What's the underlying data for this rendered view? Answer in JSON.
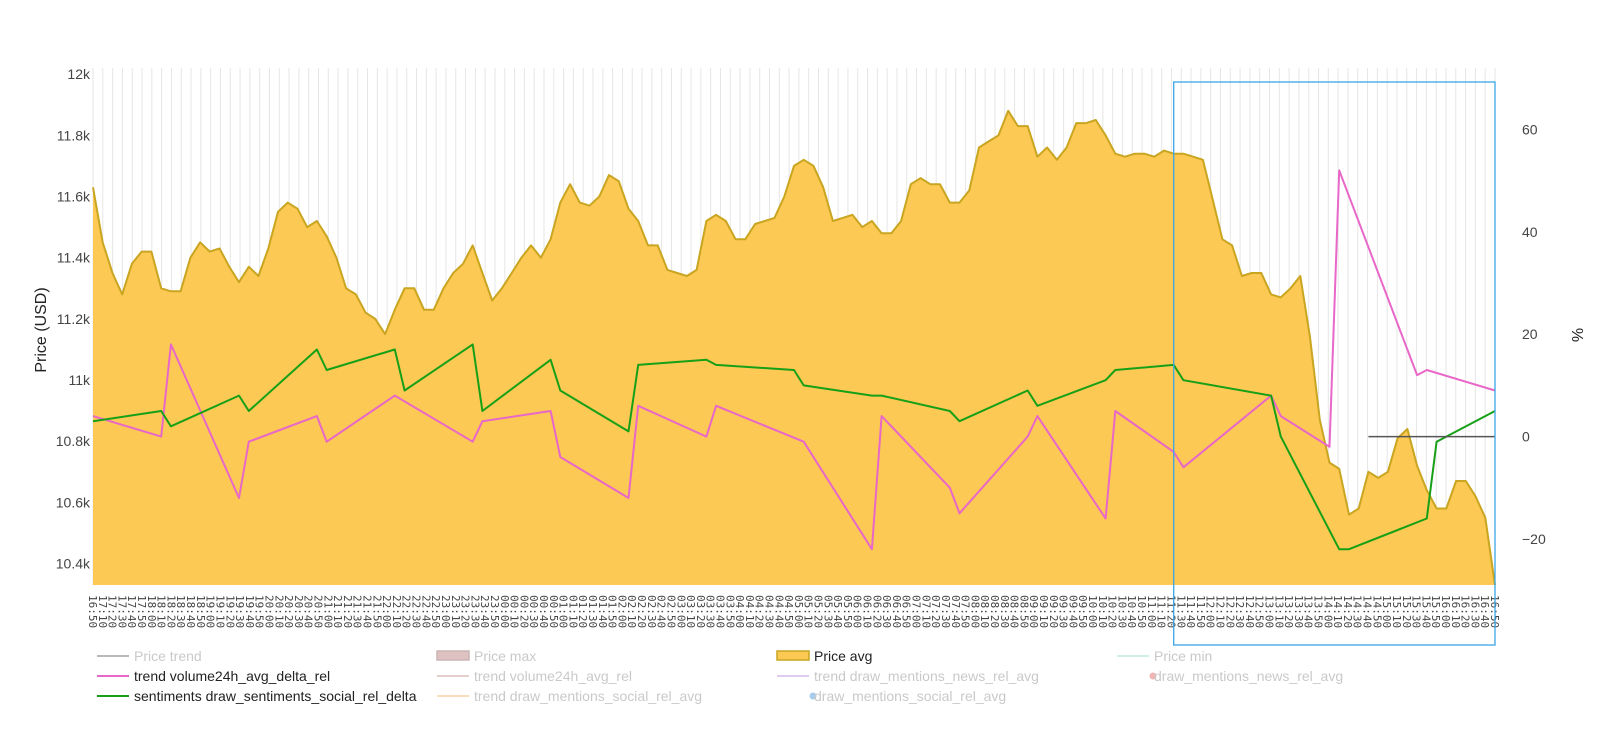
{
  "chart_data": {
    "type": "area",
    "title": "",
    "y_left": {
      "label": "Price (USD)",
      "range": [
        10330,
        12020
      ],
      "ticks": [
        10400,
        10600,
        10800,
        11000,
        11200,
        11400,
        11600,
        11800,
        12000
      ],
      "tick_labels": [
        "10.4k",
        "10.6k",
        "10.8k",
        "11k",
        "11.2k",
        "11.4k",
        "11.6k",
        "11.8k",
        "12k"
      ]
    },
    "y_right": {
      "label": "%",
      "range": [
        -29,
        72
      ],
      "ticks": [
        -20,
        0,
        20,
        40,
        60
      ],
      "tick_labels": [
        "−20",
        "0",
        "20",
        "40",
        "60"
      ]
    },
    "x_range": [
      0,
      144
    ],
    "x_tick_labels": [
      "16:50",
      "17:10",
      "17:20",
      "17:30",
      "17:40",
      "17:50",
      "18:00",
      "18:10",
      "18:20",
      "18:30",
      "18:40",
      "18:50",
      "19:00",
      "19:10",
      "19:20",
      "19:30",
      "19:40",
      "19:50",
      "20:00",
      "20:10",
      "20:20",
      "20:30",
      "20:40",
      "20:50",
      "21:00",
      "21:10",
      "21:20",
      "21:30",
      "21:40",
      "21:50",
      "22:00",
      "22:10",
      "22:20",
      "22:30",
      "22:40",
      "22:50",
      "23:00",
      "23:10",
      "23:20",
      "23:30",
      "23:40",
      "23:50",
      "00:00",
      "00:10",
      "00:20",
      "00:30",
      "00:40",
      "00:50",
      "01:00",
      "01:10",
      "01:20",
      "01:30",
      "01:40",
      "01:50",
      "02:00",
      "02:10",
      "02:20",
      "02:30",
      "02:40",
      "02:50",
      "03:00",
      "03:10",
      "03:20",
      "03:30",
      "03:40",
      "03:50",
      "04:00",
      "04:10",
      "04:20",
      "04:30",
      "04:40",
      "04:50",
      "05:00",
      "05:10",
      "05:20",
      "05:30",
      "05:40",
      "05:50",
      "06:00",
      "06:10",
      "06:20",
      "06:30",
      "06:40",
      "06:50",
      "07:00",
      "07:10",
      "07:20",
      "07:30",
      "07:40",
      "07:50",
      "08:00",
      "08:10",
      "08:20",
      "08:30",
      "08:40",
      "08:50",
      "09:00",
      "09:10",
      "09:20",
      "09:30",
      "09:40",
      "09:50",
      "10:00",
      "10:10",
      "10:20",
      "10:30",
      "10:40",
      "10:50",
      "11:00",
      "11:10",
      "11:20",
      "11:30",
      "11:40",
      "11:50",
      "12:00",
      "12:10",
      "12:20",
      "12:30",
      "12:40",
      "12:50",
      "13:00",
      "13:10",
      "13:20",
      "13:30",
      "13:40",
      "13:50",
      "14:00",
      "14:10",
      "14:20",
      "14:30",
      "14:40",
      "14:50",
      "15:00",
      "15:10",
      "15:20",
      "15:30",
      "15:40",
      "15:50",
      "16:00",
      "16:10",
      "16:20",
      "16:30",
      "16:40",
      "16:50"
    ],
    "series": [
      {
        "name": "Price avg",
        "axis": "left",
        "kind": "area",
        "color": "#fcc954",
        "line_color": "#c9a520",
        "x": [
          0,
          1,
          2,
          3,
          4,
          5,
          6,
          7,
          8,
          9,
          10,
          11,
          12,
          13,
          14,
          15,
          16,
          17,
          18,
          19,
          20,
          21,
          22,
          23,
          24,
          25,
          26,
          27,
          28,
          29,
          30,
          31,
          32,
          33,
          34,
          35,
          36,
          37,
          38,
          39,
          40,
          41,
          42,
          43,
          44,
          45,
          46,
          47,
          48,
          49,
          50,
          51,
          52,
          53,
          54,
          55,
          56,
          57,
          58,
          59,
          60,
          61,
          62,
          63,
          64,
          65,
          66,
          67,
          68,
          69,
          70,
          71,
          72,
          73,
          74,
          75,
          76,
          77,
          78,
          79,
          80,
          81,
          82,
          83,
          84,
          85,
          86,
          87,
          88,
          89,
          90,
          91,
          92,
          93,
          94,
          95,
          96,
          97,
          98,
          99,
          100,
          101,
          102,
          103,
          104,
          105,
          106,
          107,
          108,
          109,
          110,
          111,
          112,
          113,
          114,
          115,
          116,
          117,
          118,
          119,
          120,
          121,
          122,
          123,
          124,
          125,
          126,
          127,
          128,
          129,
          130,
          131,
          132,
          133,
          134,
          135,
          136,
          137,
          138,
          139,
          140,
          141,
          142,
          143,
          144
        ],
        "values": [
          11630,
          11450,
          11350,
          11280,
          11380,
          11420,
          11420,
          11300,
          11290,
          11290,
          11400,
          11450,
          11420,
          11430,
          11370,
          11320,
          11370,
          11340,
          11430,
          11550,
          11580,
          11560,
          11500,
          11520,
          11470,
          11400,
          11300,
          11280,
          11220,
          11200,
          11150,
          11230,
          11300,
          11300,
          11230,
          11230,
          11300,
          11350,
          11380,
          11440,
          11350,
          11260,
          11300,
          11350,
          11400,
          11440,
          11400,
          11460,
          11580,
          11640,
          11580,
          11570,
          11600,
          11670,
          11650,
          11560,
          11520,
          11440,
          11440,
          11360,
          11350,
          11340,
          11360,
          11520,
          11540,
          11520,
          11460,
          11460,
          11510,
          11520,
          11530,
          11600,
          11700,
          11720,
          11700,
          11630,
          11520,
          11530,
          11540,
          11500,
          11520,
          11480,
          11480,
          11520,
          11640,
          11660,
          11640,
          11640,
          11580,
          11580,
          11620,
          11760,
          11780,
          11800,
          11880,
          11830,
          11830,
          11730,
          11760,
          11720,
          11760,
          11840,
          11840,
          11850,
          11800,
          11740,
          11730,
          11740,
          11740,
          11730,
          11750,
          11740,
          11740,
          11730,
          11720,
          11590,
          11460,
          11440,
          11340,
          11350,
          11350,
          11280,
          11270,
          11300,
          11340,
          11140,
          10870,
          10730,
          10710,
          10560,
          10580,
          10700,
          10680,
          10700,
          10810,
          10840,
          10720,
          10640,
          10580,
          10580,
          10670,
          10670,
          10620,
          10550,
          10330
        ]
      },
      {
        "name": "trend volume24h_avg_delta_rel",
        "axis": "right",
        "kind": "line",
        "color": "#e867c8",
        "x": [
          0,
          7,
          8,
          15,
          16,
          23,
          24,
          31,
          39,
          40,
          47,
          48,
          55,
          56,
          63,
          64,
          73,
          80,
          81,
          88,
          89,
          96,
          97,
          104,
          105,
          111,
          112,
          121,
          122,
          127,
          128,
          136,
          137,
          144
        ],
        "values": [
          4,
          0,
          18,
          -12,
          -1,
          4,
          -1,
          8,
          -1,
          3,
          5,
          -4,
          -12,
          6,
          0,
          6,
          -1,
          -22,
          4,
          -10,
          -15,
          0,
          4,
          -16,
          5,
          -3,
          -6,
          8,
          4,
          -2,
          52,
          12,
          13,
          9
        ]
      },
      {
        "name": "sentiments draw_sentiments_social_rel_delta",
        "axis": "right",
        "kind": "line",
        "color": "#17a017",
        "x": [
          0,
          7,
          8,
          15,
          16,
          23,
          24,
          31,
          32,
          39,
          40,
          47,
          48,
          55,
          56,
          63,
          64,
          72,
          73,
          80,
          81,
          88,
          89,
          96,
          97,
          104,
          105,
          111,
          112,
          121,
          122,
          128,
          129,
          137,
          138,
          144
        ],
        "values": [
          3,
          5,
          2,
          8,
          5,
          17,
          13,
          17,
          9,
          18,
          5,
          15,
          9,
          1,
          14,
          15,
          14,
          13,
          10,
          8,
          8,
          5,
          3,
          9,
          6,
          11,
          13,
          14,
          11,
          8,
          0,
          -22,
          -22,
          -16,
          -1,
          5
        ]
      },
      {
        "name": "Price trend",
        "axis": "right",
        "kind": "line",
        "color": "#555555",
        "x": [
          131,
          144
        ],
        "values": [
          0,
          0
        ]
      }
    ],
    "legend": [
      {
        "label": "Price trend",
        "kind": "line",
        "color": "#666666",
        "visible": false
      },
      {
        "label": "Price max",
        "kind": "swatch",
        "color": "#b87a7a",
        "visible": false
      },
      {
        "label": "Price avg",
        "kind": "swatch",
        "color": "#fcc954",
        "visible": true
      },
      {
        "label": "Price min",
        "kind": "line",
        "color": "#8fdcc8",
        "visible": false
      },
      {
        "label": "trend volume24h_avg_delta_rel",
        "kind": "line",
        "color": "#e867c8",
        "visible": true
      },
      {
        "label": "trend volume24h_avg_rel",
        "kind": "line",
        "color": "#c4968f",
        "visible": false
      },
      {
        "label": "trend draw_mentions_news_rel_avg",
        "kind": "line",
        "color": "#b98fe0",
        "visible": false
      },
      {
        "label": "draw_mentions_news_rel_avg",
        "kind": "dot",
        "color": "#e05a5a",
        "visible": false
      },
      {
        "label": "sentiments draw_sentiments_social_rel_delta",
        "kind": "line",
        "color": "#17a017",
        "visible": true
      },
      {
        "label": "trend draw_mentions_social_rel_avg",
        "kind": "line",
        "color": "#f6b36a",
        "visible": false
      },
      {
        "label": "draw_mentions_social_rel_avg",
        "kind": "dot",
        "color": "#3d8fd6",
        "visible": false
      }
    ],
    "selection_box": {
      "x_start": 111,
      "x_end": 144,
      "color": "#3aa6e6"
    }
  }
}
